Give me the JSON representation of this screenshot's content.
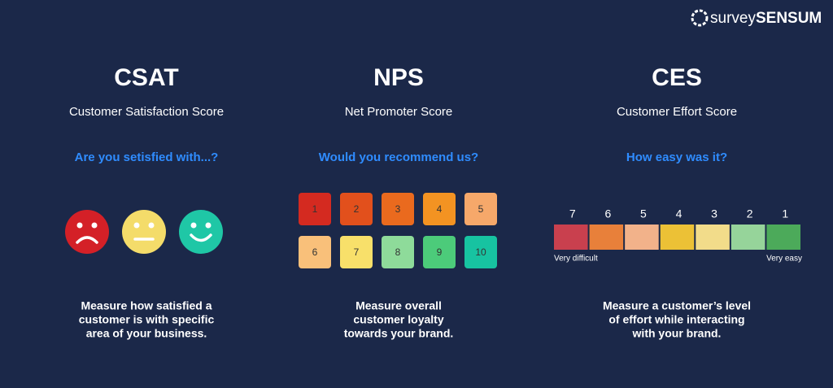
{
  "logo": {
    "light": "survey",
    "bold": "SENSUM"
  },
  "columns": [
    {
      "title": "CSAT",
      "subtitle": "Customer Satisfaction Score",
      "question": "Are you setisfied with...?",
      "description": [
        "Measure how satisfied a",
        "customer is with specific",
        "area of your business."
      ]
    },
    {
      "title": "NPS",
      "subtitle": "Net Promoter Score",
      "question": "Would you recommend us?",
      "description": [
        "Measure overall",
        "customer loyalty",
        "towards your brand."
      ]
    },
    {
      "title": "CES",
      "subtitle": "Customer Effort Score",
      "question": "How easy was it?",
      "description": [
        "Measure a customer’s level",
        "of effort while interacting",
        "with your brand."
      ]
    }
  ],
  "nps_scale": [
    1,
    2,
    3,
    4,
    5,
    6,
    7,
    8,
    9,
    10
  ],
  "ces_scale": [
    7,
    6,
    5,
    4,
    3,
    2,
    1
  ],
  "ces_low": "Very difficult",
  "ces_high": "Very easy"
}
